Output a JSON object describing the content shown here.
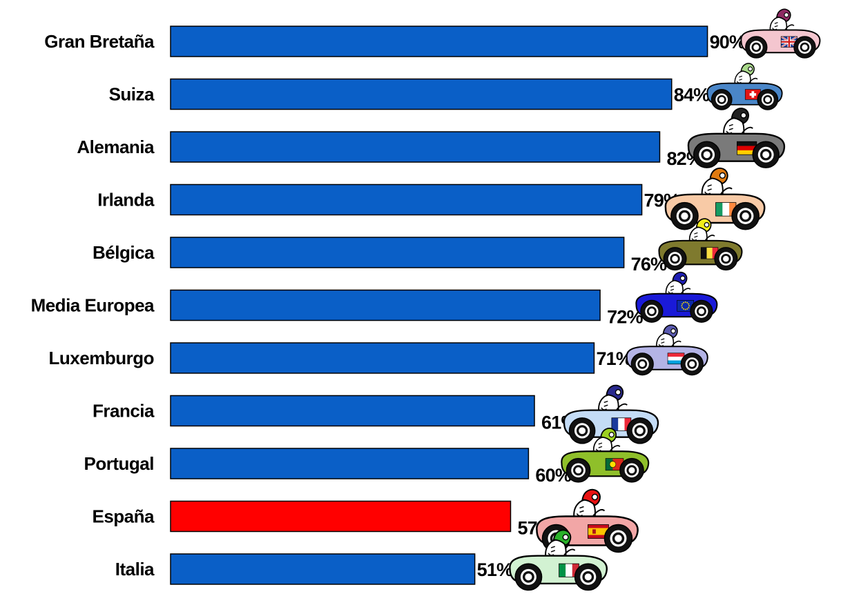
{
  "chart_data": {
    "type": "bar",
    "orientation": "horizontal",
    "categories": [
      "Gran Bretaña",
      "Suiza",
      "Alemania",
      "Irlanda",
      "Bélgica",
      "Media Europea",
      "Luxemburgo",
      "Francia",
      "Portugal",
      "España",
      "Italia"
    ],
    "values": [
      90,
      84,
      82,
      79,
      76,
      72,
      71,
      61,
      60,
      57,
      51
    ],
    "value_labels": [
      "90%",
      "84%",
      "82%",
      "79%",
      "76%",
      "72%",
      "71%",
      "61%",
      "60%",
      "57%",
      "51%"
    ],
    "bar_colors": [
      "#0a5fc7",
      "#0a5fc7",
      "#0a5fc7",
      "#0a5fc7",
      "#0a5fc7",
      "#0a5fc7",
      "#0a5fc7",
      "#0a5fc7",
      "#0a5fc7",
      "#ff0000",
      "#0a5fc7"
    ],
    "highlight": "España",
    "flags": [
      "united-kingdom-flag",
      "switzerland-flag",
      "germany-flag",
      "ireland-flag",
      "belgium-flag",
      "european-union-flag",
      "luxembourg-flag",
      "france-flag",
      "portugal-flag",
      "spain-flag",
      "italy-flag"
    ],
    "car_colors": [
      "#f4c6cf",
      "#4a86c8",
      "#7a7a7a",
      "#f8caa6",
      "#7f7a2e",
      "#1a1ad8",
      "#b4b4e6",
      "#c4dcf6",
      "#8fbf2a",
      "#f2a6a6",
      "#d2f2d2"
    ],
    "helmet_colors": [
      "#8e2a63",
      "#a8d88a",
      "#222222",
      "#e07a10",
      "#f2ec1a",
      "#1e1eb4",
      "#5a5ab0",
      "#2a2a8e",
      "#9cd020",
      "#e81212",
      "#2ab22a"
    ],
    "xlim": [
      0,
      100
    ],
    "grid": false,
    "legend": "none"
  }
}
